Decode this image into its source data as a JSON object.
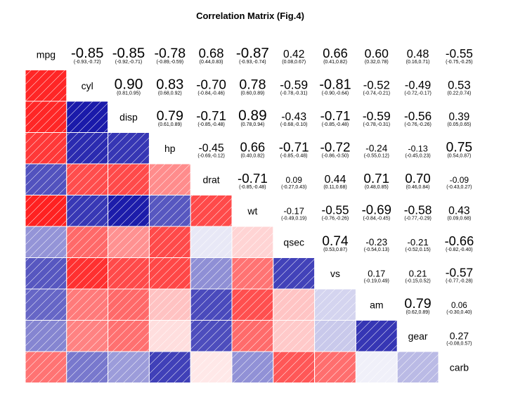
{
  "chart_data": {
    "type": "heatmap",
    "title": "Correlation Matrix (Fig.4)",
    "variables": [
      "mpg",
      "cyl",
      "disp",
      "hp",
      "drat",
      "wt",
      "qsec",
      "vs",
      "am",
      "gear",
      "carb"
    ],
    "correlations": [
      [
        1.0,
        -0.85,
        -0.85,
        -0.78,
        0.68,
        -0.87,
        0.42,
        0.66,
        0.6,
        0.48,
        -0.55
      ],
      [
        -0.85,
        1.0,
        0.9,
        0.83,
        -0.7,
        0.78,
        -0.59,
        -0.81,
        -0.52,
        -0.49,
        0.53
      ],
      [
        -0.85,
        0.9,
        1.0,
        0.79,
        -0.71,
        0.89,
        -0.43,
        -0.71,
        -0.59,
        -0.56,
        0.39
      ],
      [
        -0.78,
        0.83,
        0.79,
        1.0,
        -0.45,
        0.66,
        -0.71,
        -0.72,
        -0.24,
        -0.13,
        0.75
      ],
      [
        0.68,
        -0.7,
        -0.71,
        -0.45,
        1.0,
        -0.71,
        0.09,
        0.44,
        0.71,
        0.7,
        -0.09
      ],
      [
        -0.87,
        0.78,
        0.89,
        0.66,
        -0.71,
        1.0,
        -0.17,
        -0.55,
        -0.69,
        -0.58,
        0.43
      ],
      [
        0.42,
        -0.59,
        -0.43,
        -0.71,
        0.09,
        -0.17,
        1.0,
        0.74,
        -0.23,
        -0.21,
        -0.66
      ],
      [
        0.66,
        -0.81,
        -0.71,
        -0.72,
        0.44,
        -0.55,
        0.74,
        1.0,
        0.17,
        0.21,
        -0.57
      ],
      [
        0.6,
        -0.52,
        -0.59,
        -0.24,
        0.71,
        -0.69,
        -0.23,
        0.17,
        1.0,
        0.79,
        0.06
      ],
      [
        0.48,
        -0.49,
        -0.56,
        -0.13,
        0.7,
        -0.58,
        -0.21,
        0.21,
        0.79,
        1.0,
        0.27
      ],
      [
        -0.55,
        0.53,
        0.39,
        0.75,
        -0.09,
        0.43,
        -0.66,
        -0.57,
        0.06,
        0.27,
        1.0
      ]
    ],
    "upper_labels": [
      {
        "r": 0,
        "c": 1,
        "v": "-0.85",
        "ci": "(-0.93,-0.72)"
      },
      {
        "r": 0,
        "c": 2,
        "v": "-0.85",
        "ci": "(-0.92,-0.71)"
      },
      {
        "r": 0,
        "c": 3,
        "v": "-0.78",
        "ci": "(-0.89,-0.59)"
      },
      {
        "r": 0,
        "c": 4,
        "v": "0.68",
        "ci": "(0.44,0.83)"
      },
      {
        "r": 0,
        "c": 5,
        "v": "-0.87",
        "ci": "(-0.93,-0.74)"
      },
      {
        "r": 0,
        "c": 6,
        "v": "0.42",
        "ci": "(0.08,0.67)"
      },
      {
        "r": 0,
        "c": 7,
        "v": "0.66",
        "ci": "(0.41,0.82)"
      },
      {
        "r": 0,
        "c": 8,
        "v": "0.60",
        "ci": "(0.32,0.78)"
      },
      {
        "r": 0,
        "c": 9,
        "v": "0.48",
        "ci": "(0.16,0.71)"
      },
      {
        "r": 0,
        "c": 10,
        "v": "-0.55",
        "ci": "(-0.75,-0.25)"
      },
      {
        "r": 1,
        "c": 2,
        "v": "0.90",
        "ci": "(0.81,0.95)"
      },
      {
        "r": 1,
        "c": 3,
        "v": "0.83",
        "ci": "(0.68,0.92)"
      },
      {
        "r": 1,
        "c": 4,
        "v": "-0.70",
        "ci": "(-0.84,-0.46)"
      },
      {
        "r": 1,
        "c": 5,
        "v": "0.78",
        "ci": "(0.60,0.89)"
      },
      {
        "r": 1,
        "c": 6,
        "v": "-0.59",
        "ci": "(-0.78,-0.31)"
      },
      {
        "r": 1,
        "c": 7,
        "v": "-0.81",
        "ci": "(-0.90,-0.64)"
      },
      {
        "r": 1,
        "c": 8,
        "v": "-0.52",
        "ci": "(-0.74,-0.21)"
      },
      {
        "r": 1,
        "c": 9,
        "v": "-0.49",
        "ci": "(-0.72,-0.17)"
      },
      {
        "r": 1,
        "c": 10,
        "v": "0.53",
        "ci": "(0.22,0.74)"
      },
      {
        "r": 2,
        "c": 3,
        "v": "0.79",
        "ci": "(0.61,0.89)"
      },
      {
        "r": 2,
        "c": 4,
        "v": "-0.71",
        "ci": "(-0.85,-0.48)"
      },
      {
        "r": 2,
        "c": 5,
        "v": "0.89",
        "ci": "(0.78,0.94)"
      },
      {
        "r": 2,
        "c": 6,
        "v": "-0.43",
        "ci": "(-0.68,-0.10)"
      },
      {
        "r": 2,
        "c": 7,
        "v": "-0.71",
        "ci": "(-0.85,-0.48)"
      },
      {
        "r": 2,
        "c": 8,
        "v": "-0.59",
        "ci": "(-0.78,-0.31)"
      },
      {
        "r": 2,
        "c": 9,
        "v": "-0.56",
        "ci": "(-0.76,-0.26)"
      },
      {
        "r": 2,
        "c": 10,
        "v": "0.39",
        "ci": "(0.05,0.65)"
      },
      {
        "r": 3,
        "c": 4,
        "v": "-0.45",
        "ci": "(-0.69,-0.12)"
      },
      {
        "r": 3,
        "c": 5,
        "v": "0.66",
        "ci": "(0.40,0.82)"
      },
      {
        "r": 3,
        "c": 6,
        "v": "-0.71",
        "ci": "(-0.85,-0.48)"
      },
      {
        "r": 3,
        "c": 7,
        "v": "-0.72",
        "ci": "(-0.86,-0.50)"
      },
      {
        "r": 3,
        "c": 8,
        "v": "-0.24",
        "ci": "(-0.55,0.12)"
      },
      {
        "r": 3,
        "c": 9,
        "v": "-0.13",
        "ci": "(-0.45,0.23)"
      },
      {
        "r": 3,
        "c": 10,
        "v": "0.75",
        "ci": "(0.54,0.87)"
      },
      {
        "r": 4,
        "c": 5,
        "v": "-0.71",
        "ci": "(-0.85,-0.48)"
      },
      {
        "r": 4,
        "c": 6,
        "v": "0.09",
        "ci": "(-0.27,0.43)"
      },
      {
        "r": 4,
        "c": 7,
        "v": "0.44",
        "ci": "(0.11,0.68)"
      },
      {
        "r": 4,
        "c": 8,
        "v": "0.71",
        "ci": "(0.48,0.85)"
      },
      {
        "r": 4,
        "c": 9,
        "v": "0.70",
        "ci": "(0.46,0.84)"
      },
      {
        "r": 4,
        "c": 10,
        "v": "-0.09",
        "ci": "(-0.43,0.27)"
      },
      {
        "r": 5,
        "c": 6,
        "v": "-0.17",
        "ci": "(-0.49,0.19)"
      },
      {
        "r": 5,
        "c": 7,
        "v": "-0.55",
        "ci": "(-0.76,-0.26)"
      },
      {
        "r": 5,
        "c": 8,
        "v": "-0.69",
        "ci": "(-0.84,-0.45)"
      },
      {
        "r": 5,
        "c": 9,
        "v": "-0.58",
        "ci": "(-0.77,-0.29)"
      },
      {
        "r": 5,
        "c": 10,
        "v": "0.43",
        "ci": "(0.09,0.68)"
      },
      {
        "r": 6,
        "c": 7,
        "v": "0.74",
        "ci": "(0.53,0.87)"
      },
      {
        "r": 6,
        "c": 8,
        "v": "-0.23",
        "ci": "(-0.54,0.13)"
      },
      {
        "r": 6,
        "c": 9,
        "v": "-0.21",
        "ci": "(-0.52,0.15)"
      },
      {
        "r": 6,
        "c": 10,
        "v": "-0.66",
        "ci": "(-0.82,-0.40)"
      },
      {
        "r": 7,
        "c": 8,
        "v": "0.17",
        "ci": "(-0.19,0.49)"
      },
      {
        "r": 7,
        "c": 9,
        "v": "0.21",
        "ci": "(-0.15,0.52)"
      },
      {
        "r": 7,
        "c": 10,
        "v": "-0.57",
        "ci": "(-0.77,-0.28)"
      },
      {
        "r": 8,
        "c": 9,
        "v": "0.79",
        "ci": "(0.62,0.89)"
      },
      {
        "r": 8,
        "c": 10,
        "v": "0.06",
        "ci": "(-0.30,0.40)"
      },
      {
        "r": 9,
        "c": 10,
        "v": "0.27",
        "ci": "(-0.08,0.57)"
      }
    ],
    "colors": {
      "negative": "#ff0000",
      "positive": "#0000a0",
      "neutral": "#ffffff",
      "hatch": "#ffffff"
    },
    "grid": false,
    "legend": "none"
  }
}
